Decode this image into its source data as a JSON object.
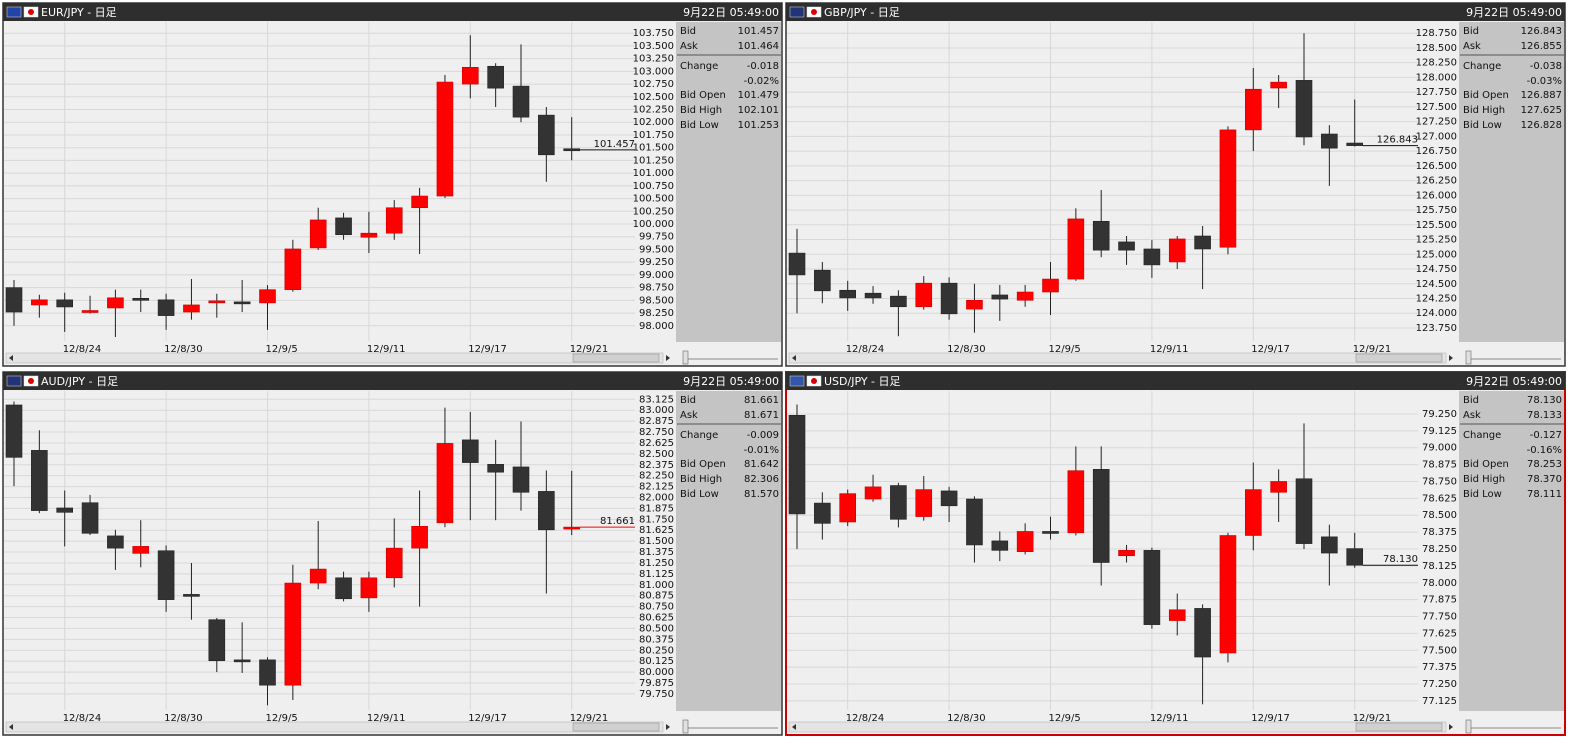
{
  "chart_data": [
    {
      "type": "candlestick",
      "title": "EUR/JPY - 日足",
      "timestamp": "9月22日 05:49:00",
      "categories": [
        null,
        null,
        "12/8/24",
        null,
        null,
        null,
        "12/8/30",
        null,
        null,
        null,
        "12/9/5",
        null,
        null,
        null,
        "12/9/11",
        null,
        null,
        null,
        "12/9/17",
        null,
        null,
        null,
        "12/9/21"
      ],
      "open": [
        98.75,
        98.41,
        98.51,
        98.29,
        98.35,
        98.54,
        98.51,
        98.27,
        98.45,
        98.47,
        98.45,
        98.71,
        99.53,
        100.12,
        99.74,
        99.82,
        100.32,
        100.55,
        102.75,
        103.1,
        102.71,
        102.14,
        101.479
      ],
      "high": [
        98.9,
        98.61,
        98.65,
        98.59,
        98.71,
        98.71,
        98.63,
        98.92,
        98.63,
        98.9,
        98.8,
        99.69,
        100.32,
        100.22,
        100.24,
        100.47,
        100.71,
        102.93,
        103.71,
        103.16,
        103.53,
        102.3,
        102.101
      ],
      "low": [
        98.0,
        98.16,
        97.88,
        98.24,
        97.78,
        98.27,
        97.92,
        98.12,
        98.16,
        98.27,
        97.92,
        98.67,
        99.49,
        99.69,
        99.43,
        99.69,
        99.41,
        100.51,
        102.47,
        102.3,
        102.0,
        100.83,
        101.253
      ],
      "close": [
        98.27,
        98.51,
        98.37,
        98.3,
        98.55,
        98.52,
        98.2,
        98.41,
        98.49,
        98.45,
        98.71,
        99.51,
        100.08,
        99.79,
        99.82,
        100.32,
        100.55,
        102.79,
        103.08,
        102.67,
        102.1,
        101.36,
        101.457
      ],
      "up_color": "#ff0000",
      "down_color": "#333333",
      "ylim": [
        97.76,
        103.97
      ],
      "yticks": [
        {
          "value": 98,
          "label": "98.000"
        },
        {
          "value": 98.25,
          "label": "98.250"
        },
        {
          "value": 98.5,
          "label": "98.500"
        },
        {
          "value": 98.75,
          "label": "98.750"
        },
        {
          "value": 99,
          "label": "99.000"
        },
        {
          "value": 99.25,
          "label": "99.250"
        },
        {
          "value": 99.5,
          "label": "99.500"
        },
        {
          "value": 99.75,
          "label": "99.750"
        },
        {
          "value": 100,
          "label": "100.000"
        },
        {
          "value": 100.25,
          "label": "100.250"
        },
        {
          "value": 100.5,
          "label": "100.500"
        },
        {
          "value": 100.75,
          "label": "100.750"
        },
        {
          "value": 101,
          "label": "101.000"
        },
        {
          "value": 101.25,
          "label": "101.250"
        },
        {
          "value": 101.5,
          "label": "101.500"
        },
        {
          "value": 101.75,
          "label": "101.750"
        },
        {
          "value": 102,
          "label": "102.000"
        },
        {
          "value": 102.25,
          "label": "102.250"
        },
        {
          "value": 102.5,
          "label": "102.500"
        },
        {
          "value": 102.75,
          "label": "102.750"
        },
        {
          "value": 103,
          "label": "103.000"
        },
        {
          "value": 103.25,
          "label": "103.250"
        },
        {
          "value": 103.5,
          "label": "103.500"
        },
        {
          "value": 103.75,
          "label": "103.750"
        }
      ],
      "grid": true,
      "quote": [
        {
          "label": "Bid",
          "value": "101.457"
        },
        {
          "label": "Ask",
          "value": "101.464"
        },
        {
          "label": "Change",
          "value": "-0.018"
        },
        {
          "label": null,
          "value": "-0.02%"
        },
        {
          "label": "Bid Open",
          "value": "101.479"
        },
        {
          "label": "Bid High",
          "value": "102.101"
        },
        {
          "label": "Bid Low",
          "value": "101.253"
        }
      ]
    },
    {
      "type": "candlestick",
      "title": "GBP/JPY - 日足",
      "timestamp": "9月22日 05:49:00",
      "categories": [
        null,
        null,
        "12/8/24",
        null,
        null,
        null,
        "12/8/30",
        null,
        null,
        null,
        "12/9/5",
        null,
        null,
        null,
        "12/9/11",
        null,
        null,
        null,
        "12/9/17",
        null,
        null,
        null,
        "12/9/21"
      ],
      "open": [
        125.02,
        124.73,
        124.39,
        124.34,
        124.29,
        124.11,
        124.51,
        124.07,
        124.31,
        124.22,
        124.36,
        124.58,
        125.56,
        125.21,
        125.09,
        124.87,
        125.31,
        125.12,
        127.11,
        127.82,
        127.95,
        127.04,
        126.887
      ],
      "high": [
        125.43,
        124.87,
        124.55,
        124.46,
        124.39,
        124.63,
        124.61,
        124.5,
        124.48,
        124.48,
        124.87,
        125.78,
        126.09,
        125.31,
        125.24,
        125.31,
        125.48,
        127.17,
        128.16,
        128.04,
        128.75,
        127.19,
        127.625
      ],
      "low": [
        124.0,
        124.17,
        124.04,
        124.16,
        123.61,
        124.06,
        123.89,
        123.67,
        123.87,
        124.11,
        123.97,
        124.55,
        124.95,
        124.82,
        124.6,
        124.75,
        124.41,
        125.0,
        126.75,
        127.48,
        126.85,
        126.16,
        126.828
      ],
      "close": [
        124.65,
        124.38,
        124.26,
        124.26,
        124.11,
        124.51,
        123.99,
        124.22,
        124.24,
        124.36,
        124.58,
        125.6,
        125.07,
        125.07,
        124.82,
        125.26,
        125.09,
        127.11,
        127.8,
        127.92,
        126.99,
        126.8,
        126.843
      ],
      "up_color": "#ff0000",
      "down_color": "#333333",
      "ylim": [
        123.58,
        128.94
      ],
      "yticks": [
        {
          "value": 123.75,
          "label": "123.750"
        },
        {
          "value": 124,
          "label": "124.000"
        },
        {
          "value": 124.25,
          "label": "124.250"
        },
        {
          "value": 124.5,
          "label": "124.500"
        },
        {
          "value": 124.75,
          "label": "124.750"
        },
        {
          "value": 125,
          "label": "125.000"
        },
        {
          "value": 125.25,
          "label": "125.250"
        },
        {
          "value": 125.5,
          "label": "125.500"
        },
        {
          "value": 125.75,
          "label": "125.750"
        },
        {
          "value": 126,
          "label": "126.000"
        },
        {
          "value": 126.25,
          "label": "126.250"
        },
        {
          "value": 126.5,
          "label": "126.500"
        },
        {
          "value": 126.75,
          "label": "126.750"
        },
        {
          "value": 127,
          "label": "127.000"
        },
        {
          "value": 127.25,
          "label": "127.250"
        },
        {
          "value": 127.5,
          "label": "127.500"
        },
        {
          "value": 127.75,
          "label": "127.750"
        },
        {
          "value": 128,
          "label": "128.000"
        },
        {
          "value": 128.25,
          "label": "128.250"
        },
        {
          "value": 128.5,
          "label": "128.500"
        },
        {
          "value": 128.75,
          "label": "128.750"
        }
      ],
      "grid": true,
      "quote": [
        {
          "label": "Bid",
          "value": "126.843"
        },
        {
          "label": "Ask",
          "value": "126.855"
        },
        {
          "label": "Change",
          "value": "-0.038"
        },
        {
          "label": null,
          "value": "-0.03%"
        },
        {
          "label": "Bid Open",
          "value": "126.887"
        },
        {
          "label": "Bid High",
          "value": "127.625"
        },
        {
          "label": "Bid Low",
          "value": "126.828"
        }
      ]
    },
    {
      "type": "candlestick",
      "title": "AUD/JPY - 日足",
      "timestamp": "9月22日 05:49:00",
      "categories": [
        null,
        null,
        "12/8/24",
        null,
        null,
        null,
        "12/8/30",
        null,
        null,
        null,
        "12/9/5",
        null,
        null,
        null,
        "12/9/11",
        null,
        null,
        null,
        "12/9/17",
        null,
        null,
        null,
        "12/9/21"
      ],
      "open": [
        83.06,
        82.54,
        81.88,
        81.94,
        81.56,
        81.36,
        81.39,
        80.89,
        80.6,
        80.14,
        80.14,
        79.85,
        81.02,
        81.08,
        80.85,
        81.08,
        81.42,
        81.71,
        82.66,
        82.38,
        82.35,
        82.07,
        81.642
      ],
      "high": [
        83.1,
        82.77,
        82.08,
        82.03,
        81.63,
        81.74,
        81.45,
        81.25,
        80.62,
        80.57,
        80.17,
        81.23,
        81.73,
        81.15,
        81.15,
        81.76,
        82.08,
        83.03,
        82.98,
        82.66,
        82.87,
        82.31,
        82.306
      ],
      "low": [
        82.13,
        81.82,
        81.44,
        81.57,
        81.17,
        81.2,
        80.69,
        80.6,
        80.0,
        79.99,
        79.62,
        79.68,
        80.95,
        80.81,
        80.69,
        80.97,
        80.75,
        81.66,
        81.74,
        81.74,
        81.85,
        80.9,
        81.57
      ],
      "close": [
        82.46,
        81.85,
        81.83,
        81.59,
        81.42,
        81.44,
        80.83,
        80.87,
        80.13,
        80.13,
        79.85,
        81.02,
        81.18,
        80.84,
        81.08,
        81.42,
        81.67,
        82.62,
        82.4,
        82.29,
        82.06,
        81.63,
        81.661
      ],
      "up_color": "#ff0000",
      "down_color": "#333333",
      "ylim": [
        79.6,
        83.22
      ],
      "yticks": [
        {
          "value": 79.75,
          "label": "79.750"
        },
        79.875,
        {
          "value": 80,
          "label": "80.000"
        },
        80.125,
        {
          "value": 80.25,
          "label": "80.250"
        },
        80.375,
        {
          "value": 80.5,
          "label": "80.500"
        },
        80.625,
        {
          "value": 80.75,
          "label": "80.750"
        },
        80.875,
        {
          "value": 81,
          "label": "81.000"
        },
        81.125,
        {
          "value": 81.25,
          "label": "81.250"
        },
        81.375,
        {
          "value": 81.5,
          "label": "81.500"
        },
        81.625,
        {
          "value": 81.75,
          "label": "81.750"
        },
        81.875,
        {
          "value": 82,
          "label": "82.000"
        },
        82.125,
        {
          "value": 82.25,
          "label": "82.250"
        },
        82.375,
        {
          "value": 82.5,
          "label": "82.500"
        },
        82.625,
        {
          "value": 82.75,
          "label": "82.750"
        },
        82.875,
        {
          "value": 83,
          "label": "83.000"
        },
        83.125
      ],
      "grid": true,
      "quote": [
        {
          "label": "Bid",
          "value": "81.661"
        },
        {
          "label": "Ask",
          "value": "81.671"
        },
        {
          "label": "Change",
          "value": "-0.009"
        },
        {
          "label": null,
          "value": "-0.01%"
        },
        {
          "label": "Bid Open",
          "value": "81.642"
        },
        {
          "label": "Bid High",
          "value": "82.306"
        },
        {
          "label": "Bid Low",
          "value": "81.570"
        }
      ]
    },
    {
      "type": "candlestick",
      "title": "USD/JPY - 日足",
      "timestamp": "9月22日 05:49:00",
      "categories": [
        null,
        null,
        "12/8/24",
        null,
        null,
        null,
        "12/8/30",
        null,
        null,
        null,
        "12/9/5",
        null,
        null,
        null,
        "12/9/11",
        null,
        null,
        null,
        "12/9/17",
        null,
        null,
        null,
        "12/9/21"
      ],
      "open": [
        79.24,
        78.59,
        78.45,
        78.62,
        78.72,
        78.49,
        78.68,
        78.62,
        78.31,
        78.23,
        78.38,
        78.37,
        78.84,
        78.2,
        78.24,
        77.72,
        77.81,
        77.48,
        78.35,
        78.67,
        78.77,
        78.34,
        78.253
      ],
      "high": [
        79.32,
        78.67,
        78.69,
        78.8,
        78.74,
        78.79,
        78.71,
        78.64,
        78.38,
        78.44,
        78.49,
        79.01,
        79.01,
        78.28,
        78.26,
        77.92,
        77.84,
        78.37,
        78.89,
        78.84,
        79.18,
        78.43,
        78.37
      ],
      "low": [
        78.25,
        78.32,
        78.42,
        78.6,
        78.41,
        78.46,
        78.45,
        78.15,
        78.16,
        78.21,
        78.32,
        78.35,
        77.98,
        78.15,
        77.66,
        77.61,
        77.1,
        77.41,
        78.24,
        78.45,
        78.25,
        77.98,
        78.111
      ],
      "close": [
        78.51,
        78.44,
        78.66,
        78.71,
        78.47,
        78.69,
        78.57,
        78.28,
        78.24,
        78.38,
        78.37,
        78.83,
        78.15,
        78.24,
        77.69,
        77.8,
        77.45,
        78.35,
        78.69,
        78.75,
        78.29,
        78.22,
        78.13
      ],
      "up_color": "#ff0000",
      "down_color": "#333333",
      "ylim": [
        77.08,
        79.42
      ],
      "yticks": [
        77.125,
        {
          "value": 77.25,
          "label": "77.250"
        },
        77.375,
        {
          "value": 77.5,
          "label": "77.500"
        },
        77.625,
        {
          "value": 77.75,
          "label": "77.750"
        },
        77.875,
        {
          "value": 78,
          "label": "78.000"
        },
        78.125,
        {
          "value": 78.25,
          "label": "78.250"
        },
        78.375,
        {
          "value": 78.5,
          "label": "78.500"
        },
        78.625,
        {
          "value": 78.75,
          "label": "78.750"
        },
        78.875,
        {
          "value": 79,
          "label": "79.000"
        },
        79.125,
        {
          "value": 79.25,
          "label": "79.250"
        }
      ],
      "grid": true,
      "quote": [
        {
          "label": "Bid",
          "value": "78.130"
        },
        {
          "label": "Ask",
          "value": "78.133"
        },
        {
          "label": "Change",
          "value": "-0.127"
        },
        {
          "label": null,
          "value": "-0.16%"
        },
        {
          "label": "Bid Open",
          "value": "78.253"
        },
        {
          "label": "Bid High",
          "value": "78.370"
        },
        {
          "label": "Bid Low",
          "value": "78.111"
        }
      ]
    }
  ]
}
